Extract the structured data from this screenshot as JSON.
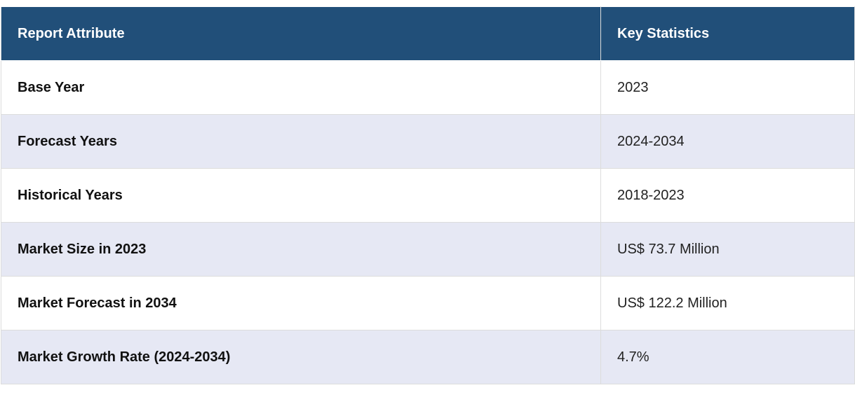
{
  "table": {
    "header": [
      "Report Attribute",
      "Key Statistics"
    ],
    "rows": [
      [
        "Base Year",
        "2023"
      ],
      [
        "Forecast Years",
        "2024-2034"
      ],
      [
        "Historical Years",
        "2018-2023"
      ],
      [
        "Market Size in 2023",
        "US$ 73.7 Million"
      ],
      [
        "Market Forecast in 2034",
        "US$ 122.2 Million"
      ],
      [
        "Market Growth Rate (2024-2034)",
        "4.7%"
      ]
    ]
  }
}
